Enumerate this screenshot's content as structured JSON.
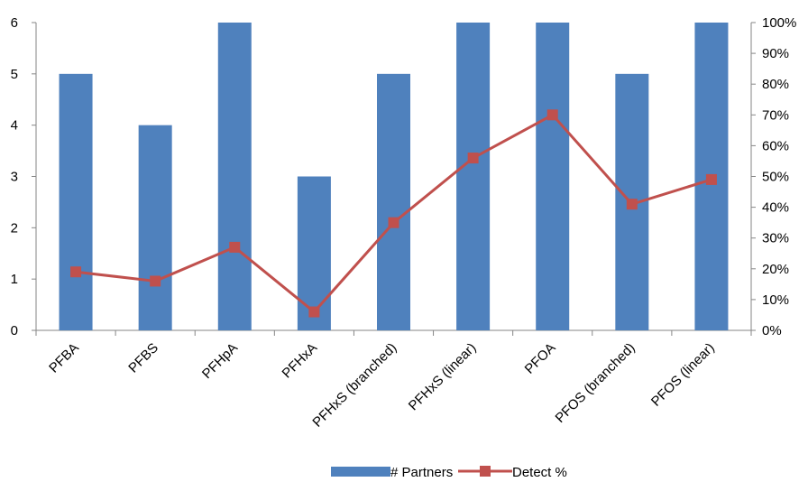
{
  "chart_data": {
    "type": "bar",
    "categories": [
      "PFBA",
      "PFBS",
      "PFHpA",
      "PFHxA",
      "PFHxS (branched)",
      "PFHxS (linear)",
      "PFOA",
      "PFOS (branched)",
      "PFOS (linear)"
    ],
    "series": [
      {
        "name": "# Partners",
        "type": "bar",
        "axis": "left",
        "color": "#4F81BD",
        "values": [
          5,
          4,
          6,
          3,
          5,
          6,
          6,
          5,
          6
        ]
      },
      {
        "name": "Detect %",
        "type": "line",
        "axis": "right",
        "color": "#C0504D",
        "marker": "square",
        "values": [
          19,
          16,
          27,
          6,
          35,
          56,
          70,
          41,
          49
        ]
      }
    ],
    "y_left": {
      "ylim": [
        0,
        6
      ],
      "ticks": [
        "0",
        "1",
        "2",
        "3",
        "4",
        "5",
        "6"
      ]
    },
    "y_right": {
      "ylim": [
        0,
        100
      ],
      "ticks": [
        "0%",
        "10%",
        "20%",
        "30%",
        "40%",
        "50%",
        "60%",
        "70%",
        "80%",
        "90%",
        "100%"
      ]
    },
    "legend": {
      "position": "bottom",
      "items": [
        "# Partners",
        "Detect %"
      ]
    },
    "grid": false,
    "title": "",
    "xlabel": "",
    "ylabel": ""
  }
}
